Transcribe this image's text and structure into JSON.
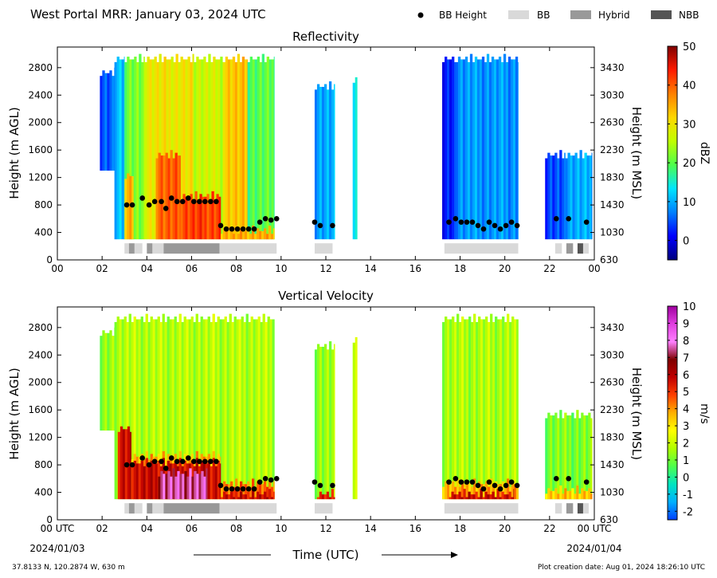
{
  "header": {
    "title": "West Portal MRR:  January 03, 2024 UTC",
    "legend": [
      {
        "label": "BB Height",
        "symbol": "dot",
        "color": "#000000"
      },
      {
        "label": "BB",
        "symbol": "rect",
        "color": "#d9d9d9"
      },
      {
        "label": "Hybrid",
        "symbol": "rect",
        "color": "#999999"
      },
      {
        "label": "NBB",
        "symbol": "rect",
        "color": "#555555"
      }
    ]
  },
  "footer": {
    "location": "37.8133 N, 120.2874 W, 630 m",
    "creation": "Plot creation date: Aug 01, 2024 18:26:10 UTC",
    "xlabel": "Time (UTC)",
    "start_date": "2024/01/03",
    "end_date": "2024/01/04"
  },
  "chart_data": [
    {
      "type": "heatmap",
      "title": "Reflectivity",
      "ylabel": "Height (m AGL)",
      "ylabel_right": "Height (m MSL)",
      "x_range_hours": [
        0,
        24
      ],
      "x_ticks": [
        "00",
        "02",
        "04",
        "06",
        "08",
        "10",
        "12",
        "14",
        "16",
        "18",
        "20",
        "22",
        "00"
      ],
      "ylim": [
        0,
        3100
      ],
      "y_ticks": [
        0,
        400,
        800,
        1200,
        1600,
        2000,
        2400,
        2800
      ],
      "y_ticks_right": [
        "630",
        "1030",
        "1430",
        "1830",
        "2230",
        "2630",
        "3030",
        "3430"
      ],
      "colorbar": {
        "label": "dBZ",
        "range": [
          -5,
          50
        ],
        "ticks": [
          0,
          10,
          20,
          30,
          40,
          50
        ],
        "colors": [
          "#00007f",
          "#0000ff",
          "#0080ff",
          "#00e5ff",
          "#4dff4d",
          "#c0ff00",
          "#ffd700",
          "#ff8000",
          "#ff1a00",
          "#7f0000"
        ]
      },
      "echo_segments": [
        {
          "start": 1.9,
          "end": 2.55,
          "bottom": 1300,
          "top": 2800,
          "level": 6
        },
        {
          "start": 2.55,
          "end": 3.0,
          "bottom": 300,
          "top": 3000,
          "level": 12
        },
        {
          "start": 3.0,
          "end": 3.9,
          "bottom": 300,
          "top": 3000,
          "level": 22
        },
        {
          "start": 3.9,
          "end": 6.1,
          "bottom": 300,
          "top": 3000,
          "level": 30
        },
        {
          "start": 6.1,
          "end": 7.4,
          "bottom": 300,
          "top": 3000,
          "level": 27
        },
        {
          "start": 7.4,
          "end": 8.5,
          "bottom": 300,
          "top": 3000,
          "level": 33
        },
        {
          "start": 8.5,
          "end": 9.7,
          "bottom": 300,
          "top": 3000,
          "level": 20
        },
        {
          "start": 11.5,
          "end": 12.4,
          "bottom": 300,
          "top": 2600,
          "level": 10
        },
        {
          "start": 13.2,
          "end": 13.4,
          "bottom": 300,
          "top": 2700,
          "level": 16
        },
        {
          "start": 17.2,
          "end": 17.8,
          "bottom": 300,
          "top": 3000,
          "level": 3
        },
        {
          "start": 17.8,
          "end": 20.6,
          "bottom": 300,
          "top": 3000,
          "level": 9
        },
        {
          "start": 21.8,
          "end": 22.7,
          "bottom": 300,
          "top": 1600,
          "level": 5
        },
        {
          "start": 22.7,
          "end": 23.9,
          "bottom": 300,
          "top": 1600,
          "level": 10
        }
      ],
      "intense_segments": [
        {
          "start": 3.0,
          "end": 3.4,
          "bottom": 300,
          "top": 1300,
          "level": 35
        },
        {
          "start": 4.4,
          "end": 5.5,
          "bottom": 300,
          "top": 1600,
          "level": 40
        },
        {
          "start": 5.5,
          "end": 7.3,
          "bottom": 300,
          "top": 1000,
          "level": 42
        },
        {
          "start": 7.3,
          "end": 9.7,
          "bottom": 300,
          "top": 500,
          "level": 35
        }
      ],
      "bb_height": {
        "times": [
          3.1,
          3.35,
          3.8,
          4.1,
          4.35,
          4.65,
          4.85,
          5.1,
          5.35,
          5.6,
          5.85,
          6.1,
          6.35,
          6.6,
          6.85,
          7.1,
          7.3,
          7.55,
          7.8,
          8.05,
          8.3,
          8.55,
          8.8,
          9.05,
          9.3,
          9.55,
          9.8,
          11.5,
          11.75,
          12.3,
          17.5,
          17.8,
          18.05,
          18.3,
          18.55,
          18.8,
          19.05,
          19.3,
          19.55,
          19.8,
          20.05,
          20.3,
          20.55,
          22.3,
          22.85,
          23.65
        ],
        "heights": [
          800,
          800,
          900,
          800,
          850,
          850,
          750,
          900,
          850,
          850,
          900,
          850,
          850,
          850,
          850,
          850,
          500,
          450,
          450,
          450,
          450,
          450,
          450,
          550,
          600,
          580,
          600,
          550,
          500,
          500,
          550,
          600,
          550,
          550,
          550,
          500,
          450,
          550,
          500,
          450,
          500,
          550,
          500,
          600,
          600,
          550
        ]
      },
      "bb_type_bar": [
        {
          "start": 3.0,
          "end": 3.2,
          "type": "BB"
        },
        {
          "start": 3.2,
          "end": 3.45,
          "type": "Hybrid"
        },
        {
          "start": 3.45,
          "end": 3.8,
          "type": "BB"
        },
        {
          "start": 4.0,
          "end": 4.25,
          "type": "Hybrid"
        },
        {
          "start": 4.25,
          "end": 4.75,
          "type": "BB"
        },
        {
          "start": 4.75,
          "end": 7.25,
          "type": "Hybrid"
        },
        {
          "start": 7.25,
          "end": 9.8,
          "type": "BB"
        },
        {
          "start": 11.5,
          "end": 12.3,
          "type": "BB"
        },
        {
          "start": 17.3,
          "end": 20.6,
          "type": "BB"
        },
        {
          "start": 22.25,
          "end": 22.55,
          "type": "BB"
        },
        {
          "start": 22.75,
          "end": 23.05,
          "type": "Hybrid"
        },
        {
          "start": 23.25,
          "end": 23.5,
          "type": "NBB"
        },
        {
          "start": 23.5,
          "end": 23.75,
          "type": "BB"
        }
      ]
    },
    {
      "type": "heatmap",
      "title": "Vertical Velocity",
      "ylabel": "Height (m AGL)",
      "ylabel_right": "Height (m MSL)",
      "x_range_hours": [
        0,
        24
      ],
      "x_ticks": [
        "00 UTC",
        "02",
        "04",
        "06",
        "08",
        "10",
        "12",
        "14",
        "16",
        "18",
        "20",
        "22",
        "00 UTC"
      ],
      "ylim": [
        0,
        3100
      ],
      "y_ticks": [
        0,
        400,
        800,
        1200,
        1600,
        2000,
        2400,
        2800
      ],
      "y_ticks_right": [
        "630",
        "1030",
        "1430",
        "1830",
        "2230",
        "2630",
        "3030",
        "3430"
      ],
      "colorbar": {
        "label": "m/s",
        "range": [
          -2.5,
          10
        ],
        "ticks": [
          -2,
          -1,
          0,
          1,
          2,
          3,
          4,
          5,
          6,
          7,
          8,
          9,
          10
        ],
        "colors": [
          "#0040ff",
          "#00b0ff",
          "#00e5c0",
          "#4dff4d",
          "#b0ff00",
          "#ffff00",
          "#ffb000",
          "#ff4000",
          "#c00000",
          "#7f0000",
          "#ff80ff",
          "#e040e0",
          "#a000a0"
        ]
      },
      "echo_segments": [
        {
          "start": 1.9,
          "end": 2.55,
          "bottom": 1300,
          "top": 2800,
          "level": 1.5
        },
        {
          "start": 2.55,
          "end": 9.7,
          "bottom": 300,
          "top": 3000,
          "level": 1.8
        },
        {
          "start": 11.5,
          "end": 12.4,
          "bottom": 300,
          "top": 2600,
          "level": 1.5
        },
        {
          "start": 13.2,
          "end": 13.4,
          "bottom": 300,
          "top": 2700,
          "level": 2.5
        },
        {
          "start": 17.2,
          "end": 20.6,
          "bottom": 300,
          "top": 3000,
          "level": 1.7
        },
        {
          "start": 21.8,
          "end": 23.9,
          "bottom": 300,
          "top": 1600,
          "level": 1.2
        }
      ],
      "intense_segments": [
        {
          "start": 2.7,
          "end": 3.3,
          "bottom": 300,
          "top": 1400,
          "level": 5.8
        },
        {
          "start": 3.3,
          "end": 7.3,
          "bottom": 300,
          "top": 1000,
          "level": 3.8
        },
        {
          "start": 3.3,
          "end": 7.3,
          "bottom": 300,
          "top": 900,
          "level": 5.8
        },
        {
          "start": 4.5,
          "end": 6.7,
          "bottom": 300,
          "top": 750,
          "level": 7.6
        },
        {
          "start": 7.3,
          "end": 9.7,
          "bottom": 300,
          "top": 600,
          "level": 4.5
        },
        {
          "start": 7.3,
          "end": 9.7,
          "bottom": 300,
          "top": 450,
          "level": 5.8
        },
        {
          "start": 11.6,
          "end": 12.4,
          "bottom": 300,
          "top": 450,
          "level": 5.5
        },
        {
          "start": 17.2,
          "end": 20.6,
          "bottom": 300,
          "top": 600,
          "level": 3.8
        },
        {
          "start": 17.5,
          "end": 20.4,
          "bottom": 300,
          "top": 450,
          "level": 5.8
        },
        {
          "start": 21.8,
          "end": 23.9,
          "bottom": 300,
          "top": 500,
          "level": 3.5
        }
      ],
      "bb_height": {
        "times": [
          3.1,
          3.35,
          3.8,
          4.1,
          4.35,
          4.65,
          4.85,
          5.1,
          5.35,
          5.6,
          5.85,
          6.1,
          6.35,
          6.6,
          6.85,
          7.1,
          7.3,
          7.55,
          7.8,
          8.05,
          8.3,
          8.55,
          8.8,
          9.05,
          9.3,
          9.55,
          9.8,
          11.5,
          11.75,
          12.3,
          17.5,
          17.8,
          18.05,
          18.3,
          18.55,
          18.8,
          19.05,
          19.3,
          19.55,
          19.8,
          20.05,
          20.3,
          20.55,
          22.3,
          22.85,
          23.65
        ],
        "heights": [
          800,
          800,
          900,
          800,
          850,
          850,
          750,
          900,
          850,
          850,
          900,
          850,
          850,
          850,
          850,
          850,
          500,
          450,
          450,
          450,
          450,
          450,
          450,
          550,
          600,
          580,
          600,
          550,
          500,
          500,
          550,
          600,
          550,
          550,
          550,
          500,
          450,
          550,
          500,
          450,
          500,
          550,
          500,
          600,
          600,
          550
        ]
      },
      "bb_type_bar": [
        {
          "start": 3.0,
          "end": 3.2,
          "type": "BB"
        },
        {
          "start": 3.2,
          "end": 3.45,
          "type": "Hybrid"
        },
        {
          "start": 3.45,
          "end": 3.8,
          "type": "BB"
        },
        {
          "start": 4.0,
          "end": 4.25,
          "type": "Hybrid"
        },
        {
          "start": 4.25,
          "end": 4.75,
          "type": "BB"
        },
        {
          "start": 4.75,
          "end": 7.25,
          "type": "Hybrid"
        },
        {
          "start": 7.25,
          "end": 9.8,
          "type": "BB"
        },
        {
          "start": 11.5,
          "end": 12.3,
          "type": "BB"
        },
        {
          "start": 17.3,
          "end": 20.6,
          "type": "BB"
        },
        {
          "start": 22.25,
          "end": 22.55,
          "type": "BB"
        },
        {
          "start": 22.75,
          "end": 23.05,
          "type": "Hybrid"
        },
        {
          "start": 23.25,
          "end": 23.5,
          "type": "NBB"
        },
        {
          "start": 23.5,
          "end": 23.75,
          "type": "BB"
        }
      ]
    }
  ]
}
